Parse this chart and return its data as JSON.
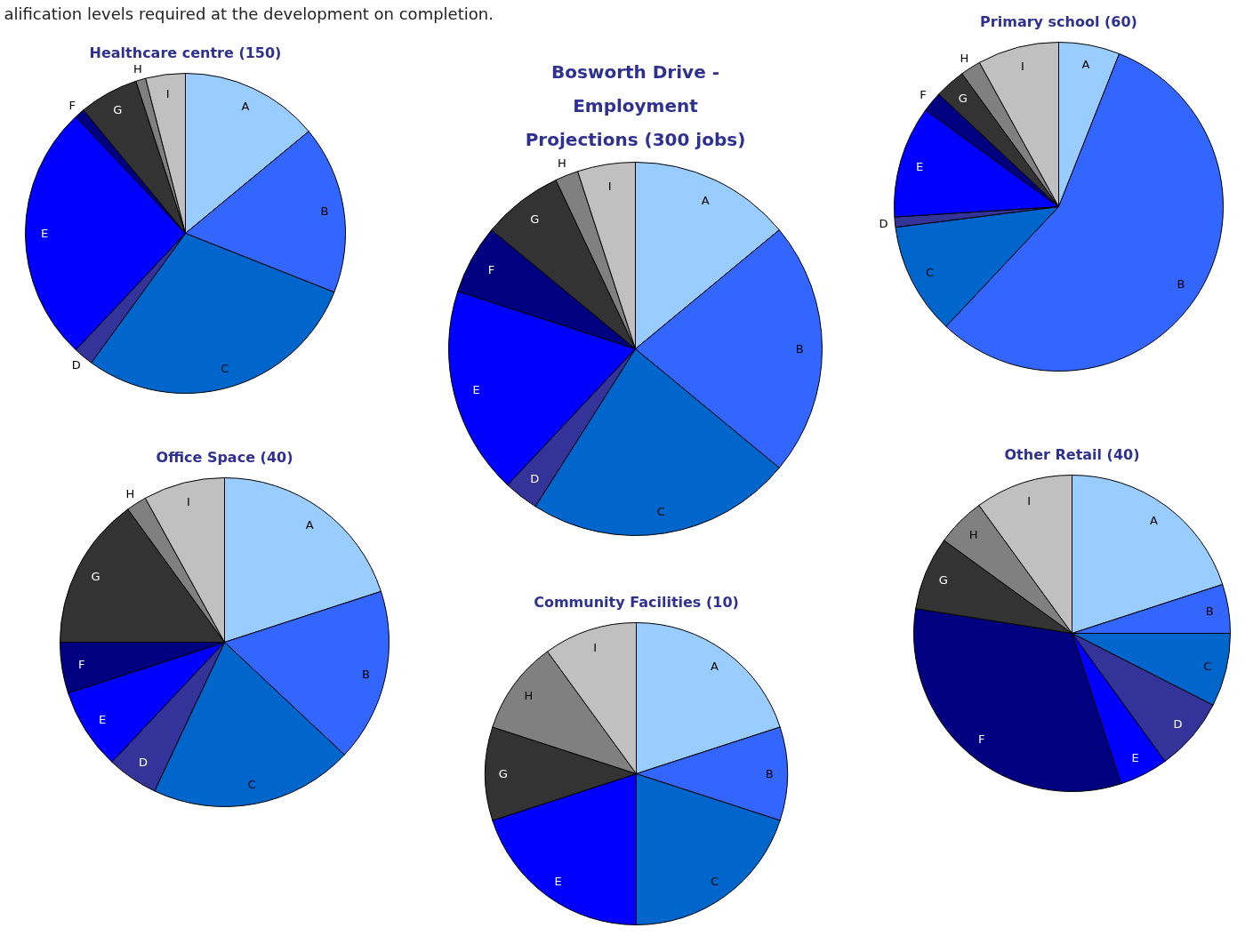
{
  "chart_data": [
    {
      "type": "pie",
      "title": "Healthcare centre (150)",
      "annotations": [
        "alification levels required at the development on completion."
      ],
      "categories": [
        "A",
        "B",
        "C",
        "D",
        "E",
        "F",
        "G",
        "H",
        "I"
      ],
      "values": [
        14,
        17,
        29,
        2,
        26,
        1,
        6,
        1,
        4
      ],
      "colors": [
        "#99ccff",
        "#3366ff",
        "#0066cc",
        "#333399",
        "#0000ff",
        "#000080",
        "#333333",
        "#808080",
        "#c0c0c0"
      ]
    },
    {
      "type": "pie",
      "title": "Bosworth Drive -\nEmployment\nProjections (300 jobs)",
      "categories": [
        "A",
        "B",
        "C",
        "D",
        "E",
        "F",
        "G",
        "H",
        "I"
      ],
      "values": [
        14,
        22,
        23,
        3,
        18,
        6,
        7,
        2,
        5
      ],
      "colors": [
        "#99ccff",
        "#3366ff",
        "#0066cc",
        "#333399",
        "#0000ff",
        "#000080",
        "#333333",
        "#808080",
        "#c0c0c0"
      ]
    },
    {
      "type": "pie",
      "title": "Primary school (60)",
      "categories": [
        "A",
        "B",
        "C",
        "D",
        "E",
        "F",
        "G",
        "H",
        "I"
      ],
      "values": [
        6,
        56,
        11,
        1,
        11,
        2,
        3,
        2,
        8
      ],
      "colors": [
        "#99ccff",
        "#3366ff",
        "#0066cc",
        "#333399",
        "#0000ff",
        "#000080",
        "#333333",
        "#808080",
        "#c0c0c0"
      ]
    },
    {
      "type": "pie",
      "title": "Office Space (40)",
      "categories": [
        "A",
        "B",
        "C",
        "D",
        "E",
        "F",
        "G",
        "H",
        "I"
      ],
      "values": [
        20,
        17,
        20,
        5,
        8,
        5,
        15,
        2,
        8
      ],
      "colors": [
        "#99ccff",
        "#3366ff",
        "#0066cc",
        "#333399",
        "#0000ff",
        "#000080",
        "#333333",
        "#808080",
        "#c0c0c0"
      ]
    },
    {
      "type": "pie",
      "title": "Other Retail (40)",
      "categories": [
        "A",
        "B",
        "C",
        "D",
        "E",
        "F",
        "G",
        "H",
        "I"
      ],
      "values": [
        20,
        5,
        7.5,
        7.5,
        5,
        32.5,
        7.5,
        5,
        10
      ],
      "colors": [
        "#99ccff",
        "#3366ff",
        "#0066cc",
        "#333399",
        "#0000ff",
        "#000080",
        "#333333",
        "#808080",
        "#c0c0c0"
      ]
    },
    {
      "type": "pie",
      "title": "Community Facilities (10)",
      "categories": [
        "A",
        "B",
        "C",
        null,
        "E",
        null,
        "G",
        "H",
        "I"
      ],
      "values": [
        20,
        10,
        20,
        0,
        20,
        0,
        10,
        10,
        10
      ],
      "colors": [
        "#99ccff",
        "#3366ff",
        "#0066cc",
        "#333399",
        "#0000ff",
        "#000080",
        "#333333",
        "#808080",
        "#c0c0c0"
      ]
    }
  ]
}
